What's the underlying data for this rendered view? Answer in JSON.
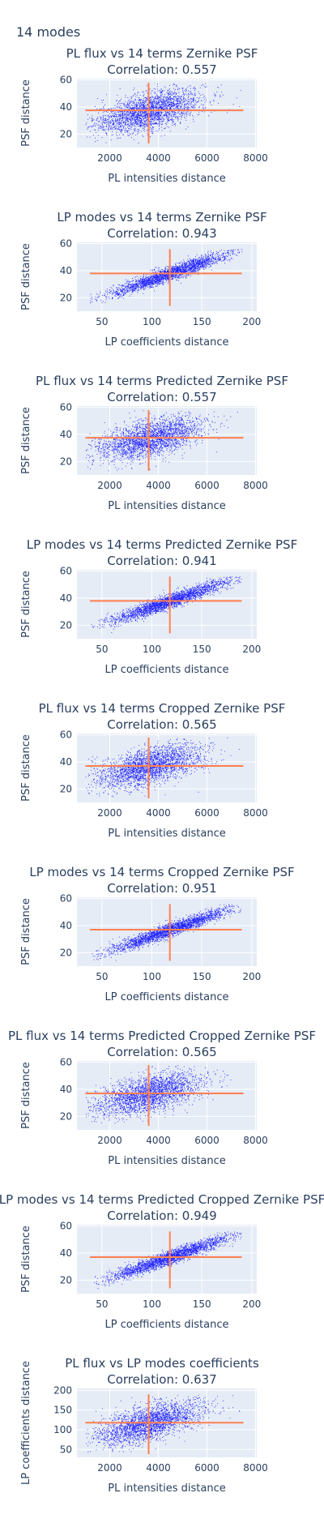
{
  "page": {
    "title": "14 modes"
  },
  "colors": {
    "points": "#0000ff",
    "crosshair": "#ff7f50",
    "plot_bg": "#e5ecf6",
    "grid": "#ffffff",
    "text": "#2a3f5f"
  },
  "chart_data": [
    {
      "type": "scatter",
      "title": "PL flux vs 14 terms Zernike PSF",
      "subtitle": "Correlation: 0.557",
      "xlabel": "PL intensities distance",
      "ylabel": "PSF distance",
      "xlim": [
        650,
        8050
      ],
      "ylim": [
        10,
        61
      ],
      "xticks": [
        2000,
        4000,
        6000,
        8000
      ],
      "yticks": [
        20,
        40,
        60
      ],
      "x_tick_labels": [
        "2000",
        "4000",
        "6000",
        "8000"
      ],
      "y_tick_labels": [
        "20",
        "40",
        "60"
      ],
      "cloud": {
        "x_mean": 3600,
        "x_sd": 1100,
        "x_min": 1000,
        "x_max": 7500,
        "y_mean": 37,
        "y_sd": 8,
        "y_min": 13,
        "y_max": 58,
        "correlation": 0.557
      },
      "crosshair": {
        "x": 3600,
        "y": 37.5,
        "x_from": 1000,
        "x_to": 7500,
        "y_from": 13,
        "y_to": 58
      }
    },
    {
      "type": "scatter",
      "title": "LP modes vs 14 terms Zernike PSF",
      "subtitle": "Correlation: 0.943",
      "xlabel": "LP coefficients distance",
      "ylabel": "PSF distance",
      "xlim": [
        25,
        205
      ],
      "ylim": [
        10,
        61
      ],
      "xticks": [
        50,
        100,
        150,
        200
      ],
      "yticks": [
        20,
        40,
        60
      ],
      "x_tick_labels": [
        "50",
        "100",
        "150",
        "200"
      ],
      "y_tick_labels": [
        "20",
        "40",
        "60"
      ],
      "cloud": {
        "x_mean": 118,
        "x_sd": 30,
        "x_min": 38,
        "x_max": 190,
        "y_mean": 38,
        "y_sd": 8,
        "y_min": 14,
        "y_max": 56,
        "correlation": 0.943
      },
      "crosshair": {
        "x": 118,
        "y": 38,
        "x_from": 38,
        "x_to": 190,
        "y_from": 14,
        "y_to": 56
      }
    },
    {
      "type": "scatter",
      "title": "PL flux vs 14 terms Predicted Zernike PSF",
      "subtitle": "Correlation: 0.557",
      "xlabel": "PL intensities distance",
      "ylabel": "PSF distance",
      "xlim": [
        650,
        8050
      ],
      "ylim": [
        10,
        61
      ],
      "xticks": [
        2000,
        4000,
        6000,
        8000
      ],
      "yticks": [
        20,
        40,
        60
      ],
      "x_tick_labels": [
        "2000",
        "4000",
        "6000",
        "8000"
      ],
      "y_tick_labels": [
        "20",
        "40",
        "60"
      ],
      "cloud": {
        "x_mean": 3600,
        "x_sd": 1100,
        "x_min": 1000,
        "x_max": 7500,
        "y_mean": 37,
        "y_sd": 8,
        "y_min": 13,
        "y_max": 58,
        "correlation": 0.557
      },
      "crosshair": {
        "x": 3600,
        "y": 37.5,
        "x_from": 1000,
        "x_to": 7500,
        "y_from": 13,
        "y_to": 58
      }
    },
    {
      "type": "scatter",
      "title": "LP modes vs 14 terms Predicted Zernike PSF",
      "subtitle": "Correlation: 0.941",
      "xlabel": "LP coefficients distance",
      "ylabel": "PSF distance",
      "xlim": [
        25,
        205
      ],
      "ylim": [
        10,
        61
      ],
      "xticks": [
        50,
        100,
        150,
        200
      ],
      "yticks": [
        20,
        40,
        60
      ],
      "x_tick_labels": [
        "50",
        "100",
        "150",
        "200"
      ],
      "y_tick_labels": [
        "20",
        "40",
        "60"
      ],
      "cloud": {
        "x_mean": 118,
        "x_sd": 30,
        "x_min": 38,
        "x_max": 190,
        "y_mean": 38,
        "y_sd": 8,
        "y_min": 14,
        "y_max": 56,
        "correlation": 0.941
      },
      "crosshair": {
        "x": 118,
        "y": 38,
        "x_from": 38,
        "x_to": 190,
        "y_from": 14,
        "y_to": 56
      }
    },
    {
      "type": "scatter",
      "title": "PL flux vs 14 terms Cropped Zernike PSF",
      "subtitle": "Correlation: 0.565",
      "xlabel": "PL intensities distance",
      "ylabel": "PSF distance",
      "xlim": [
        650,
        8050
      ],
      "ylim": [
        10,
        61
      ],
      "xticks": [
        2000,
        4000,
        6000,
        8000
      ],
      "yticks": [
        20,
        40,
        60
      ],
      "x_tick_labels": [
        "2000",
        "4000",
        "6000",
        "8000"
      ],
      "y_tick_labels": [
        "20",
        "40",
        "60"
      ],
      "cloud": {
        "x_mean": 3600,
        "x_sd": 1100,
        "x_min": 1000,
        "x_max": 7500,
        "y_mean": 37,
        "y_sd": 8,
        "y_min": 13,
        "y_max": 58,
        "correlation": 0.565
      },
      "crosshair": {
        "x": 3600,
        "y": 37,
        "x_from": 1000,
        "x_to": 7500,
        "y_from": 13,
        "y_to": 58
      }
    },
    {
      "type": "scatter",
      "title": "LP modes vs 14 terms Cropped Zernike PSF",
      "subtitle": "Correlation: 0.951",
      "xlabel": "LP coefficients distance",
      "ylabel": "PSF distance",
      "xlim": [
        25,
        205
      ],
      "ylim": [
        10,
        61
      ],
      "xticks": [
        50,
        100,
        150,
        200
      ],
      "yticks": [
        20,
        40,
        60
      ],
      "x_tick_labels": [
        "50",
        "100",
        "150",
        "200"
      ],
      "y_tick_labels": [
        "20",
        "40",
        "60"
      ],
      "cloud": {
        "x_mean": 118,
        "x_sd": 30,
        "x_min": 38,
        "x_max": 190,
        "y_mean": 37,
        "y_sd": 8,
        "y_min": 14,
        "y_max": 56,
        "correlation": 0.951
      },
      "crosshair": {
        "x": 118,
        "y": 37,
        "x_from": 38,
        "x_to": 190,
        "y_from": 14,
        "y_to": 56
      }
    },
    {
      "type": "scatter",
      "title": "PL flux vs 14 terms Predicted Cropped Zernike PSF",
      "subtitle": "Correlation: 0.565",
      "xlabel": "PL intensities distance",
      "ylabel": "PSF distance",
      "xlim": [
        650,
        8050
      ],
      "ylim": [
        10,
        61
      ],
      "xticks": [
        2000,
        4000,
        6000,
        8000
      ],
      "yticks": [
        20,
        40,
        60
      ],
      "x_tick_labels": [
        "2000",
        "4000",
        "6000",
        "8000"
      ],
      "y_tick_labels": [
        "20",
        "40",
        "60"
      ],
      "cloud": {
        "x_mean": 3600,
        "x_sd": 1100,
        "x_min": 1000,
        "x_max": 7500,
        "y_mean": 37,
        "y_sd": 8,
        "y_min": 13,
        "y_max": 58,
        "correlation": 0.565
      },
      "crosshair": {
        "x": 3600,
        "y": 37,
        "x_from": 1000,
        "x_to": 7500,
        "y_from": 13,
        "y_to": 58
      }
    },
    {
      "type": "scatter",
      "title": "LP modes vs 14 terms Predicted Cropped Zernike PSF",
      "subtitle": "Correlation: 0.949",
      "xlabel": "LP coefficients distance",
      "ylabel": "PSF distance",
      "xlim": [
        25,
        205
      ],
      "ylim": [
        10,
        61
      ],
      "xticks": [
        50,
        100,
        150,
        200
      ],
      "yticks": [
        20,
        40,
        60
      ],
      "x_tick_labels": [
        "50",
        "100",
        "150",
        "200"
      ],
      "y_tick_labels": [
        "20",
        "40",
        "60"
      ],
      "cloud": {
        "x_mean": 118,
        "x_sd": 30,
        "x_min": 38,
        "x_max": 190,
        "y_mean": 37,
        "y_sd": 8,
        "y_min": 14,
        "y_max": 56,
        "correlation": 0.949
      },
      "crosshair": {
        "x": 118,
        "y": 37,
        "x_from": 38,
        "x_to": 190,
        "y_from": 14,
        "y_to": 56
      }
    },
    {
      "type": "scatter",
      "title": "PL flux vs LP modes coefficients",
      "subtitle": "Correlation: 0.637",
      "xlabel": "PL intensities distance",
      "ylabel": "LP coefficients distance",
      "xlim": [
        650,
        8050
      ],
      "ylim": [
        30,
        205
      ],
      "xticks": [
        2000,
        4000,
        6000,
        8000
      ],
      "yticks": [
        50,
        100,
        150,
        200
      ],
      "x_tick_labels": [
        "2000",
        "4000",
        "6000",
        "8000"
      ],
      "y_tick_labels": [
        "50",
        "100",
        "150",
        "200"
      ],
      "cloud": {
        "x_mean": 3600,
        "x_sd": 1100,
        "x_min": 1000,
        "x_max": 7500,
        "y_mean": 118,
        "y_sd": 28,
        "y_min": 38,
        "y_max": 190,
        "correlation": 0.637
      },
      "crosshair": {
        "x": 3600,
        "y": 118,
        "x_from": 1000,
        "x_to": 7500,
        "y_from": 38,
        "y_to": 190
      }
    }
  ]
}
